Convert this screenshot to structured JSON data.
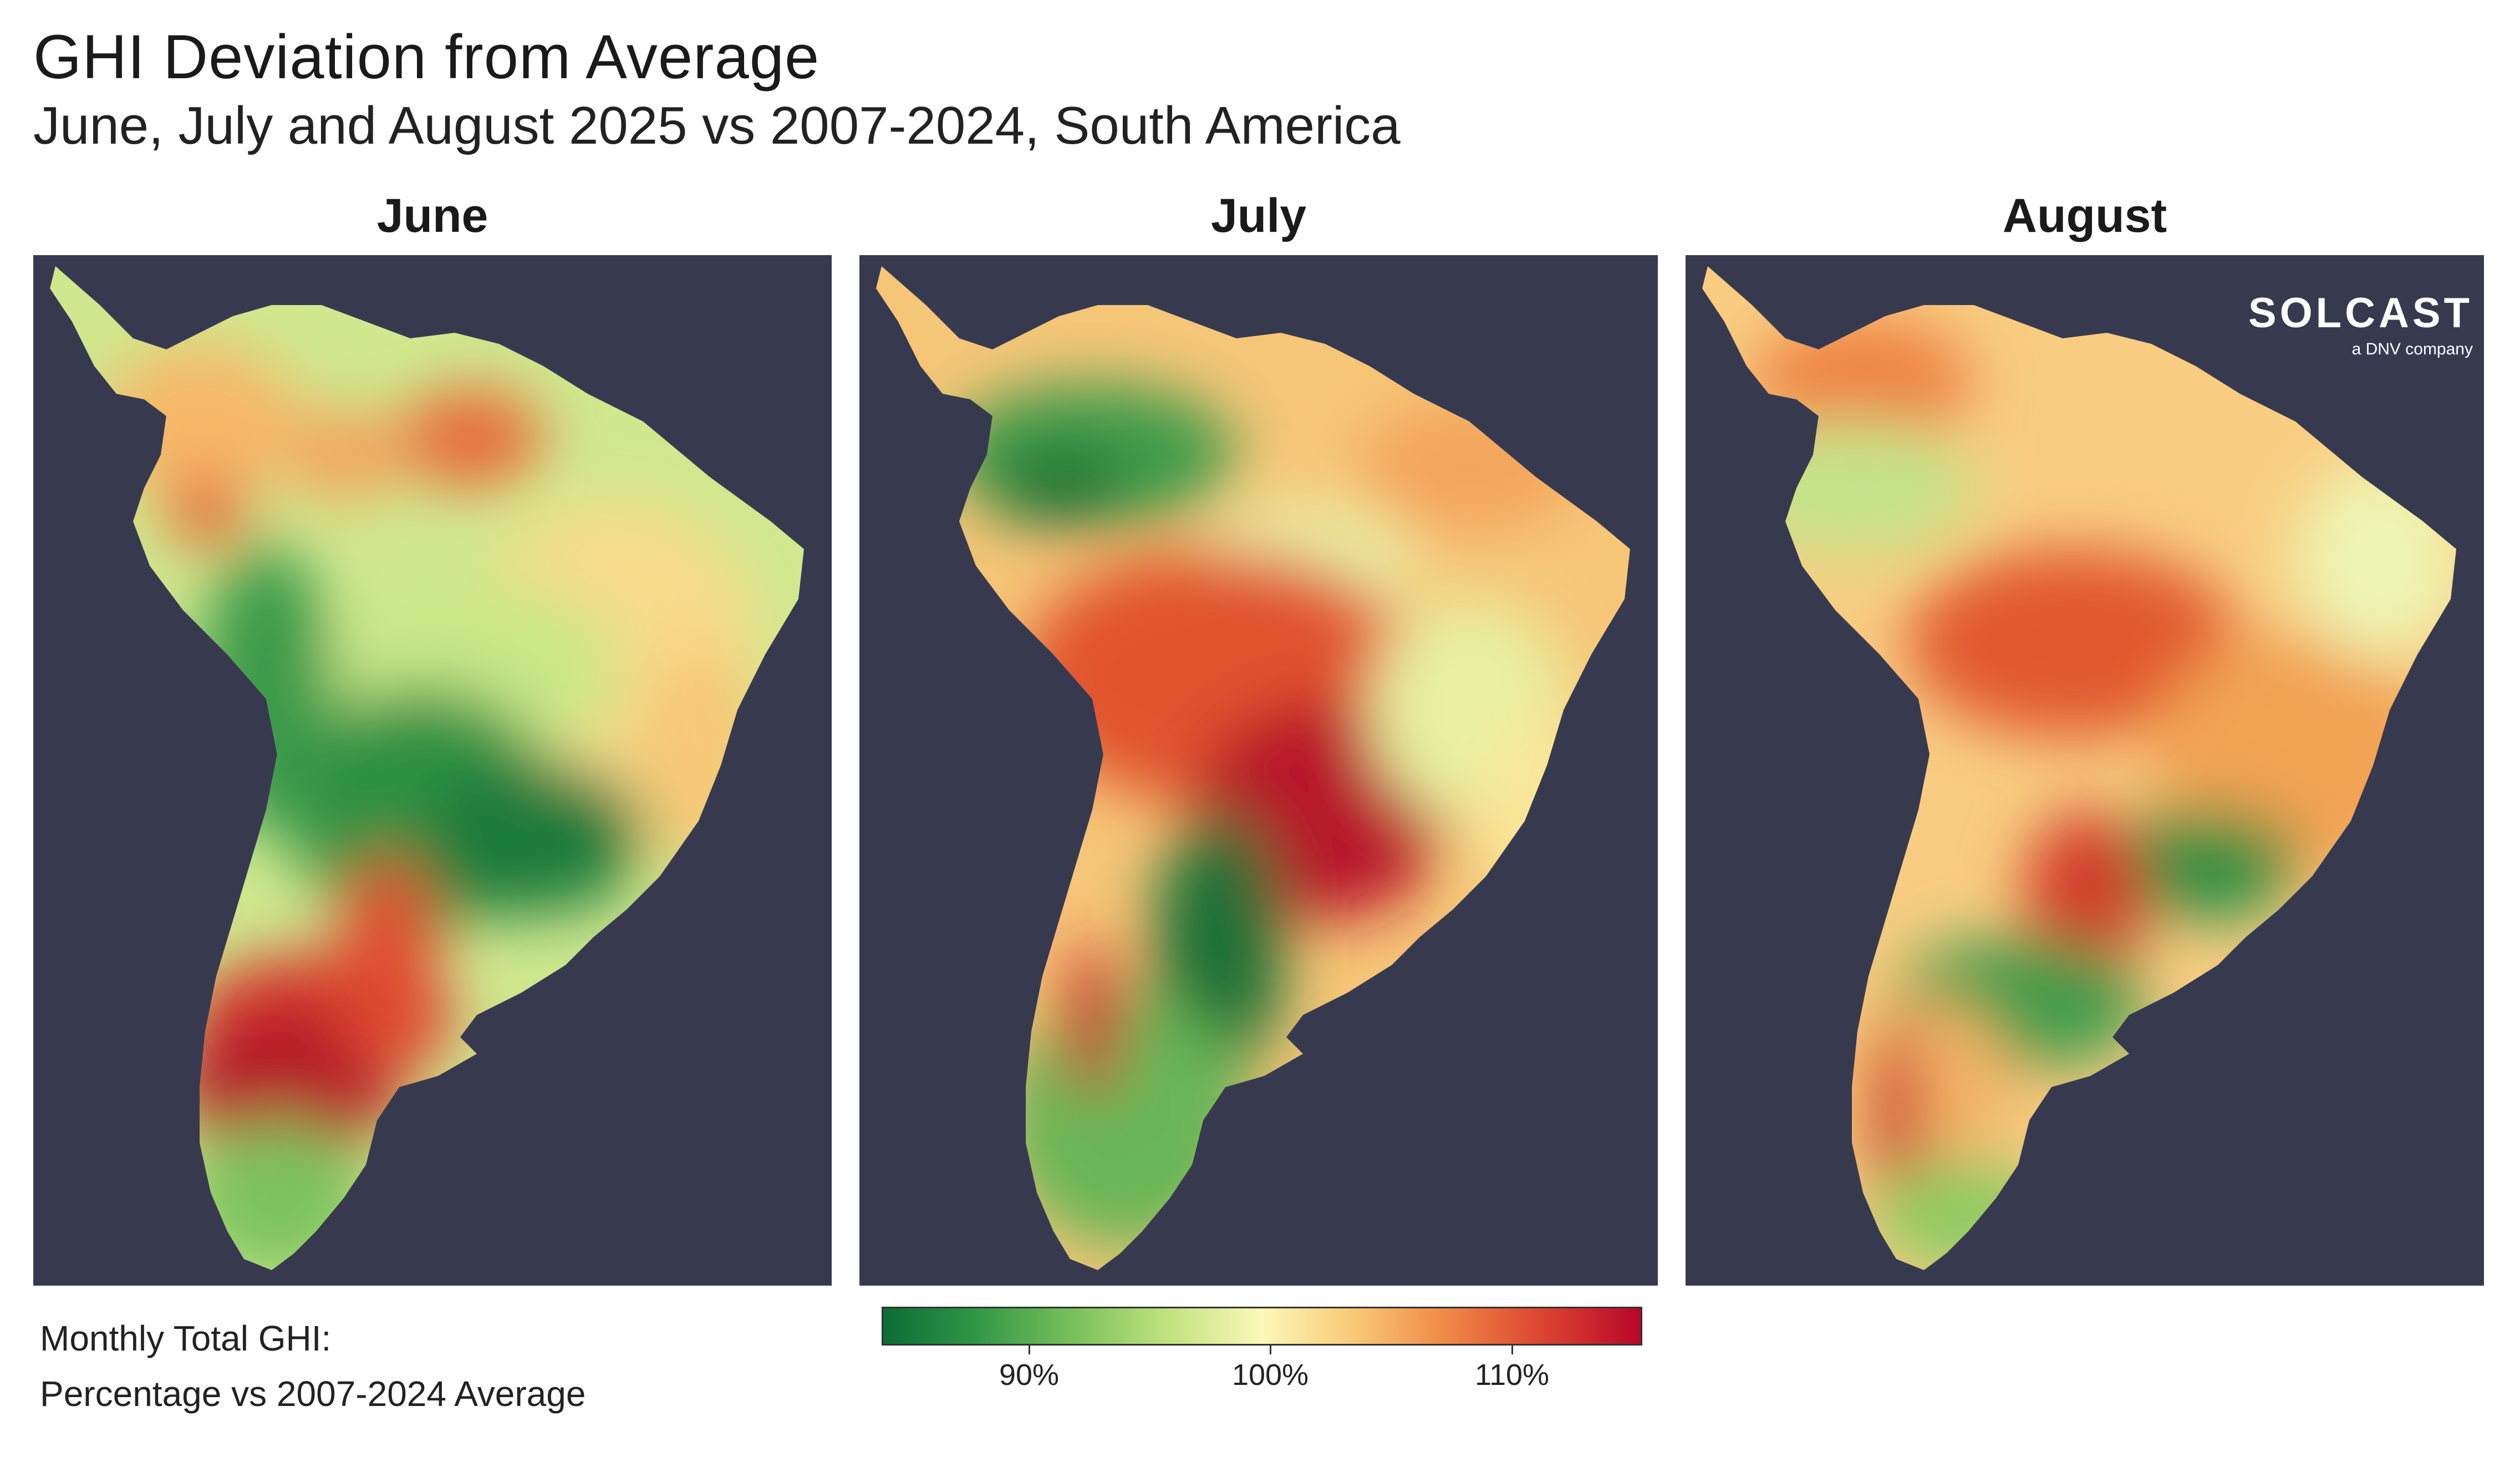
{
  "header": {
    "title": "GHI Deviation from Average",
    "subtitle": "June, July and August 2025 vs 2007-2024, South America"
  },
  "panels": [
    {
      "title": "June"
    },
    {
      "title": "July"
    },
    {
      "title": "August"
    }
  ],
  "logo": {
    "wordmark": "SOLCAST",
    "tagline": "a DNV company"
  },
  "legend": {
    "caption_line1": "Monthly Total GHI:",
    "caption_line2": "Percentage vs 2007-2024 Average",
    "ticks": [
      "90%",
      "100%",
      "110%"
    ]
  },
  "colors": {
    "ocean": "#373a4f",
    "scale_low": "#0b6b35",
    "scale_mid": "#fbf8b8",
    "scale_high": "#b8062a"
  }
}
